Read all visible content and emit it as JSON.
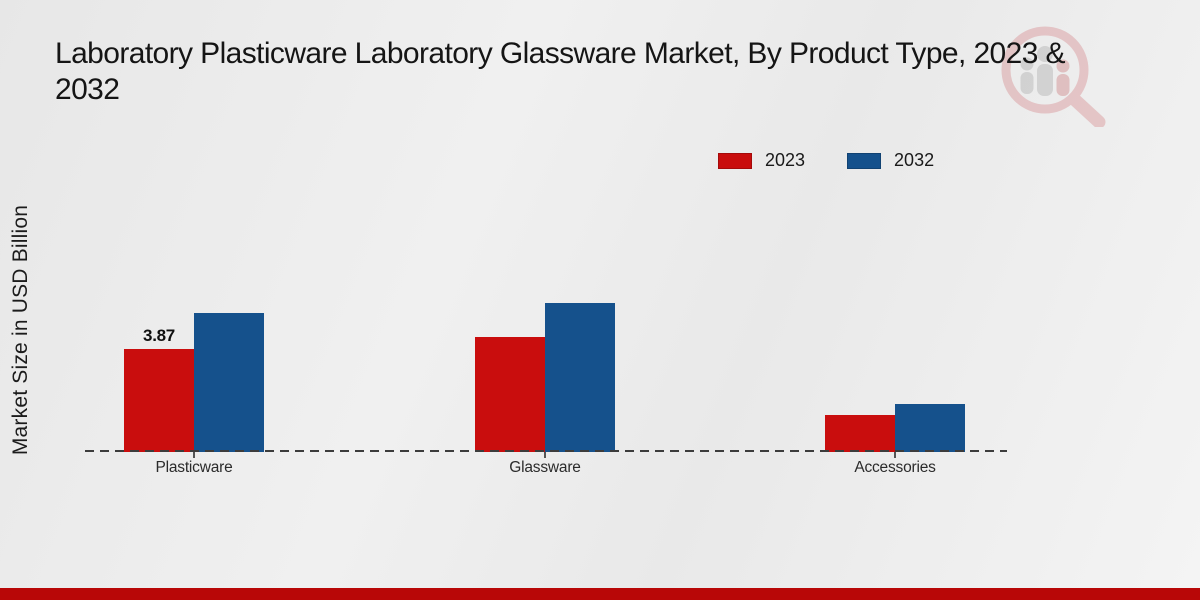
{
  "page": {
    "title_line1": "Laboratory Plasticware Laboratory Glassware Market, By Product Type, 2023 &",
    "title_line2": "2032"
  },
  "chart_data": {
    "type": "bar",
    "title": "Laboratory Plasticware Laboratory Glassware Market, By Product Type, 2023 & 2032",
    "categories": [
      "Plasticware",
      "Glassware",
      "Accessories"
    ],
    "series": [
      {
        "name": "2023",
        "color": "#c90d0d",
        "values": [
          3.87,
          4.3,
          1.4
        ]
      },
      {
        "name": "2032",
        "color": "#15518c",
        "values": [
          5.2,
          5.6,
          1.8
        ]
      }
    ],
    "ylabel": "Market Size in USD Billion",
    "xlabel": "",
    "ylim": [
      0,
      6
    ],
    "grid": false,
    "legend_position": "top-right",
    "value_labels": [
      {
        "series": "2023",
        "category": "Plasticware",
        "text": "3.87"
      }
    ]
  },
  "colors": {
    "accent_red": "#c90d0d",
    "accent_blue": "#15518c",
    "bottom_strip": "#b80707",
    "axis_dash": "#3c3c3c"
  },
  "icons": {
    "logo": "magnifier-people-logo"
  }
}
